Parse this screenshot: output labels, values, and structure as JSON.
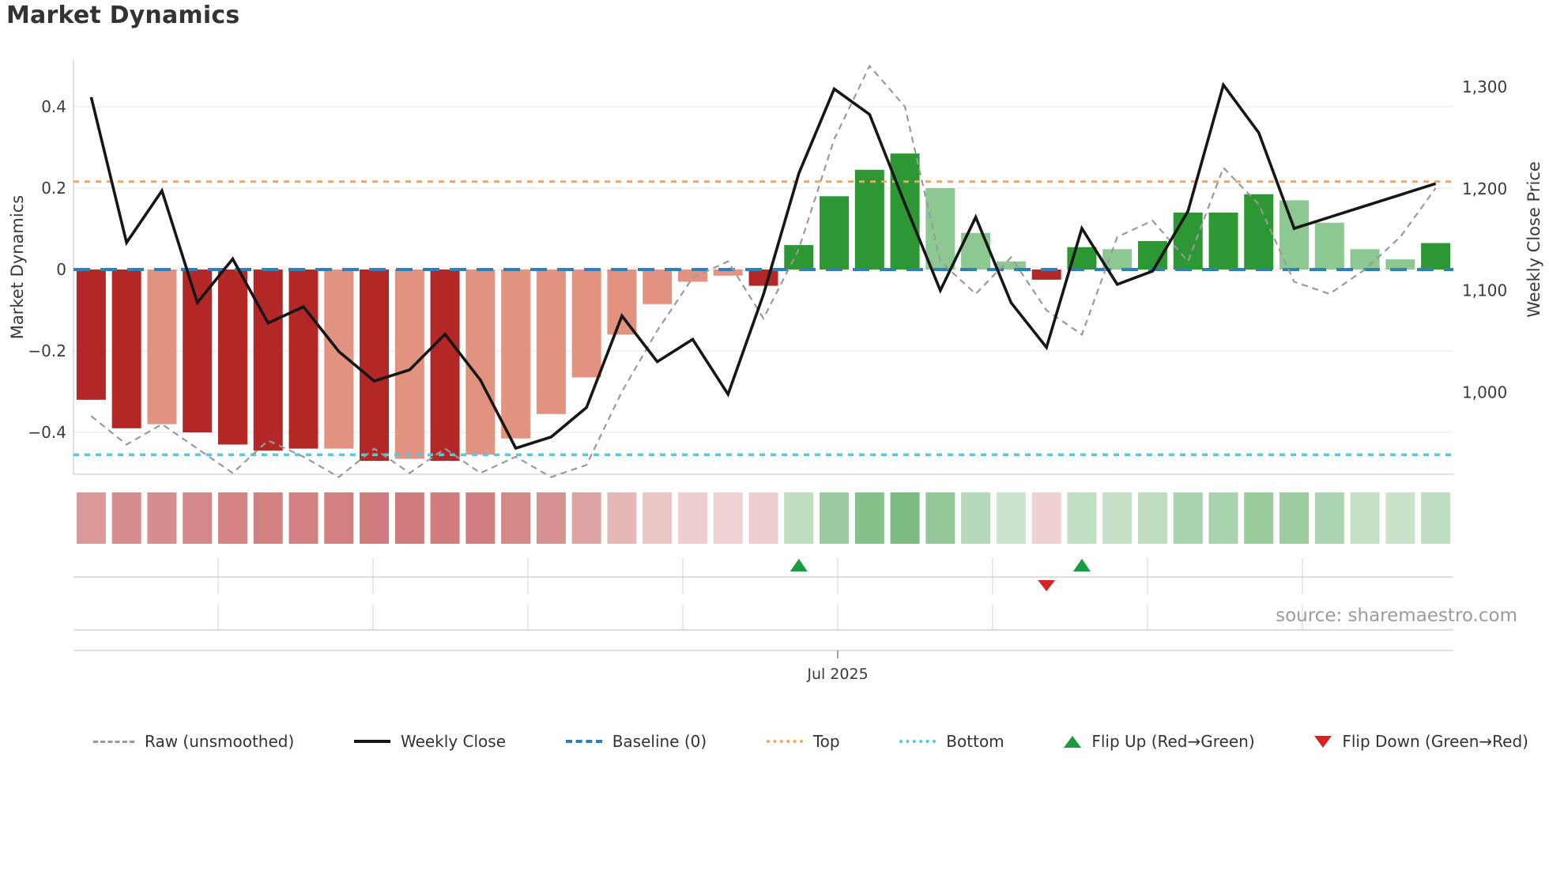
{
  "title": "Market Dynamics",
  "source": "source: sharemaestro.com",
  "colors": {
    "bar_dark_red": "#b42727",
    "bar_salmon": "#e29380",
    "bar_green": "#2d9733",
    "bar_light_green": "#8dc792",
    "weekly_close_line": "#161616",
    "raw_line": "#9a9a9a",
    "baseline": "#2f7fba",
    "top_line": "#f3a55b",
    "bottom_line": "#4ec9e9",
    "flip_up": "#1a9a41",
    "flip_down": "#d92121",
    "heat_red": "#b42d2d",
    "heat_green": "#2f9437",
    "grid": "#ebebeb",
    "spine": "#cfcfcf",
    "tick_text": "#3a3a3a"
  },
  "legend": [
    {
      "id": "raw",
      "label": "Raw (unsmoothed)"
    },
    {
      "id": "weekly-close",
      "label": "Weekly Close"
    },
    {
      "id": "baseline",
      "label": "Baseline (0)"
    },
    {
      "id": "top",
      "label": "Top"
    },
    {
      "id": "bottom",
      "label": "Bottom"
    },
    {
      "id": "flip-up",
      "label": "Flip Up (Red→Green)"
    },
    {
      "id": "flip-down",
      "label": "Flip Down (Green→Red)"
    }
  ],
  "chart_data": {
    "type": "bar",
    "title": "Market Dynamics",
    "n_weeks": 39,
    "left_axis": {
      "label": "Market Dynamics",
      "tick_labels": [
        "0.4",
        "0.2",
        "0",
        "−0.2",
        "−0.4"
      ],
      "tick_values": [
        0.4,
        0.2,
        0,
        -0.2,
        -0.4
      ],
      "range": [
        -0.5,
        0.52
      ]
    },
    "right_axis": {
      "label": "Weekly Close Price",
      "tick_labels": [
        "1,300",
        "1,200",
        "1,100",
        "1,000"
      ],
      "tick_values": [
        1300,
        1200,
        1100,
        1000
      ],
      "range": [
        919,
        1327
      ]
    },
    "x_axis": {
      "visible_tick_label": "Jul 2025",
      "grid": "monthly ticks in marker rows"
    },
    "baseline": 0,
    "top_threshold": 0.216,
    "bottom_threshold": -0.455,
    "series": [
      {
        "name": "Market Dynamics (smoothed bars)",
        "type": "bar",
        "axis": "left",
        "values": [
          -0.32,
          -0.39,
          -0.38,
          -0.4,
          -0.43,
          -0.445,
          -0.44,
          -0.44,
          -0.47,
          -0.465,
          -0.47,
          -0.455,
          -0.415,
          -0.355,
          -0.265,
          -0.16,
          -0.085,
          -0.03,
          -0.015,
          -0.04,
          0.06,
          0.18,
          0.245,
          0.285,
          0.2,
          0.09,
          0.02,
          -0.025,
          0.055,
          0.05,
          0.07,
          0.14,
          0.14,
          0.185,
          0.17,
          0.115,
          0.05,
          0.025,
          0.065
        ],
        "bar_colors": [
          "dark_red",
          "dark_red",
          "salmon",
          "dark_red",
          "dark_red",
          "dark_red",
          "dark_red",
          "salmon",
          "dark_red",
          "salmon",
          "dark_red",
          "salmon",
          "salmon",
          "salmon",
          "salmon",
          "salmon",
          "salmon",
          "salmon",
          "salmon",
          "dark_red",
          "green",
          "green",
          "green",
          "green",
          "light_green",
          "light_green",
          "light_green",
          "dark_red",
          "green",
          "light_green",
          "green",
          "green",
          "green",
          "green",
          "light_green",
          "light_green",
          "light_green",
          "light_green",
          "green"
        ]
      },
      {
        "name": "Raw (unsmoothed)",
        "type": "line",
        "style": "dashed",
        "axis": "left",
        "values": [
          -0.36,
          -0.43,
          -0.38,
          -0.44,
          -0.5,
          -0.42,
          -0.46,
          -0.51,
          -0.44,
          -0.5,
          -0.44,
          -0.5,
          -0.46,
          -0.51,
          -0.48,
          -0.3,
          -0.15,
          -0.02,
          0.02,
          -0.12,
          0.05,
          0.32,
          0.5,
          0.4,
          0.02,
          -0.06,
          0.03,
          -0.1,
          -0.16,
          0.08,
          0.12,
          0.02,
          0.25,
          0.16,
          -0.03,
          -0.06,
          0.0,
          0.08,
          0.2
        ]
      },
      {
        "name": "Weekly Close",
        "type": "line",
        "axis": "right",
        "values": [
          1290,
          1147,
          1198,
          1088,
          1131,
          1068,
          1084,
          1040,
          1011,
          1022,
          1057,
          1012,
          945,
          956,
          985,
          1075,
          1030,
          1052,
          998,
          1096,
          1215,
          1298,
          1273,
          1185,
          1100,
          1172,
          1088,
          1044,
          1161,
          1106,
          1119,
          1178,
          1302,
          1255,
          1161,
          1172,
          1183,
          1194,
          1205
        ]
      }
    ],
    "heat_strip": {
      "description": "one cell per week below plot, red for negative / green for positive, intensity proportional to |value|",
      "derived_from": "series[0].values"
    },
    "flip_up_weeks": [
      21,
      29
    ],
    "flip_down_weeks": [
      28
    ]
  }
}
